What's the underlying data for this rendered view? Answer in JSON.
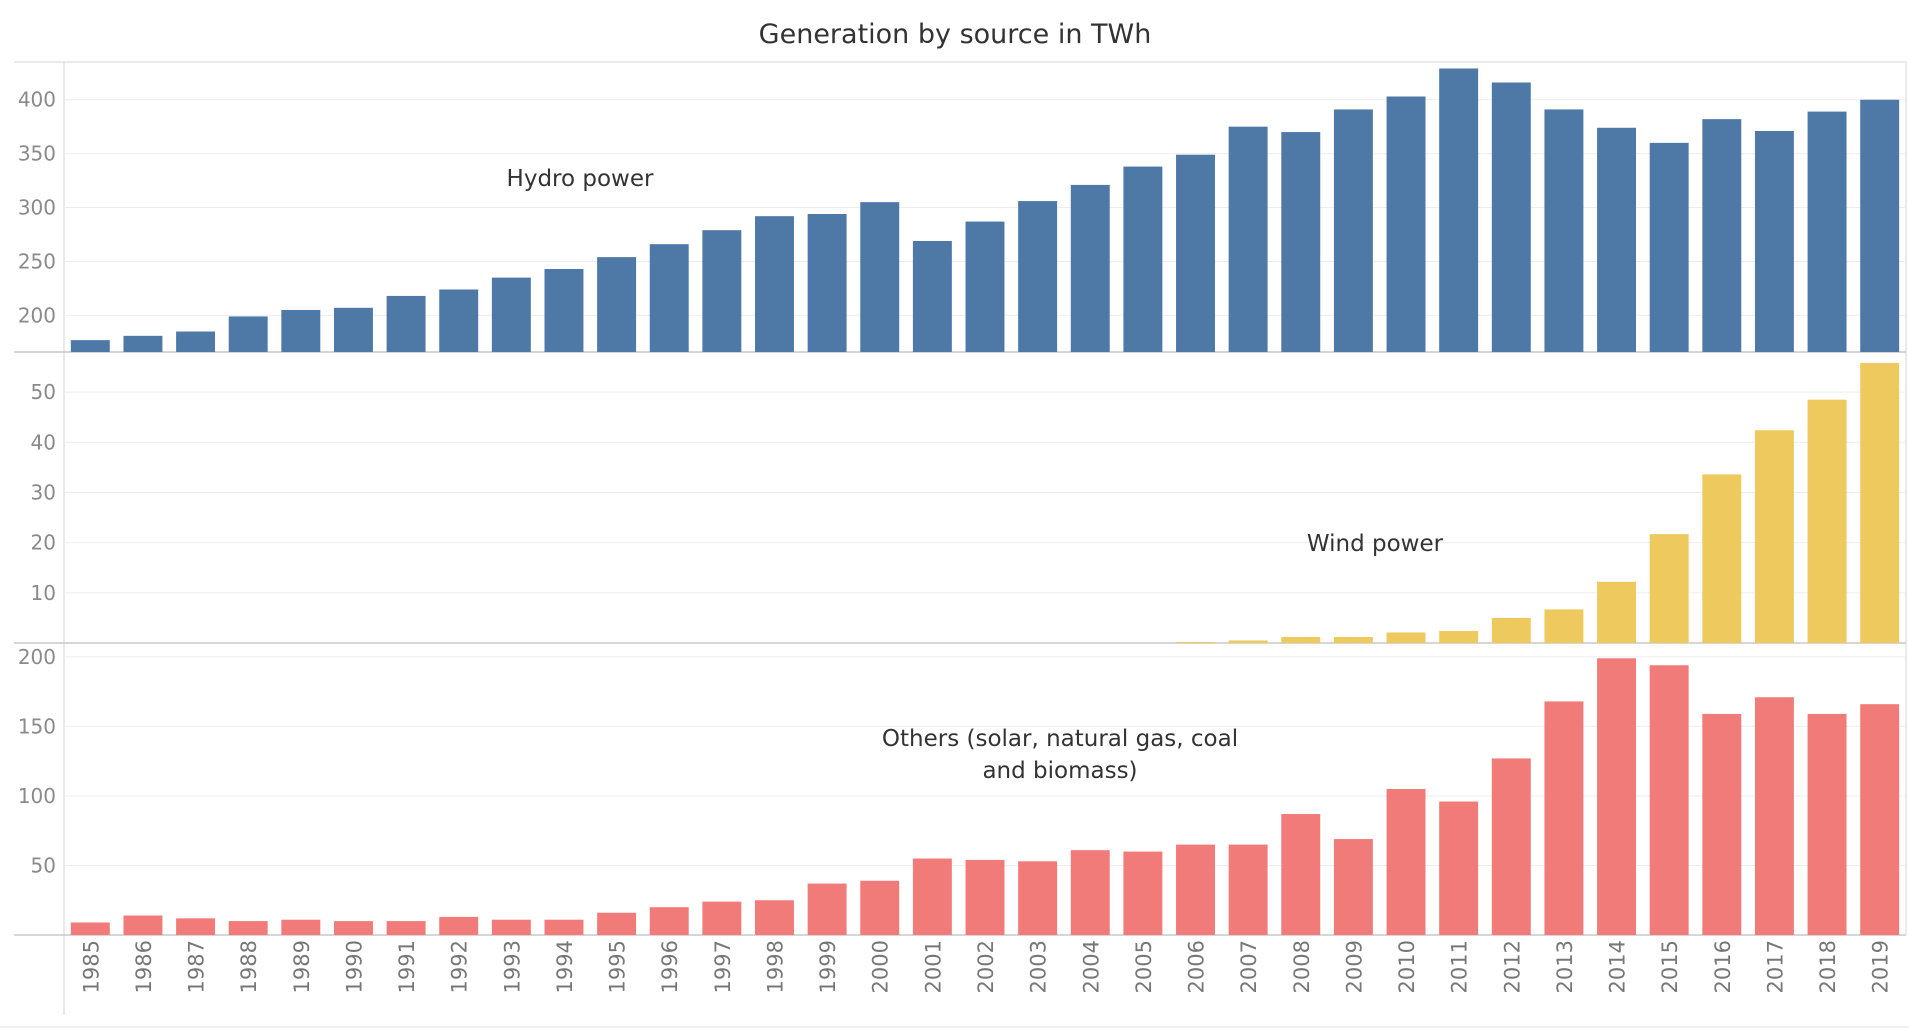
{
  "chart_data": {
    "type": "bar",
    "title": "Generation by source in TWh",
    "categories": [
      "1985",
      "1986",
      "1987",
      "1988",
      "1989",
      "1990",
      "1991",
      "1992",
      "1993",
      "1994",
      "1995",
      "1996",
      "1997",
      "1998",
      "1999",
      "2000",
      "2001",
      "2002",
      "2003",
      "2004",
      "2005",
      "2006",
      "2007",
      "2008",
      "2009",
      "2010",
      "2011",
      "2012",
      "2013",
      "2014",
      "2015",
      "2016",
      "2017",
      "2018",
      "2019"
    ],
    "colors": {
      "hydro": "#4e79a7",
      "wind": "#edc95e",
      "others": "#f07b79"
    },
    "grid": true,
    "panels": [
      {
        "annotation": "Hydro power",
        "ylim": [
          166,
          435
        ],
        "yticks": [
          200,
          250,
          300,
          350,
          400
        ],
        "values": [
          177,
          181,
          185,
          199,
          205,
          207,
          218,
          224,
          235,
          243,
          254,
          266,
          279,
          292,
          294,
          305,
          269,
          287,
          306,
          321,
          338,
          349,
          375,
          370,
          391,
          403,
          429,
          416,
          391,
          374,
          360,
          382,
          371,
          389,
          400
        ]
      },
      {
        "annotation": "Wind power",
        "ylim": [
          0,
          58
        ],
        "yticks": [
          10,
          20,
          30,
          40,
          50
        ],
        "values": [
          0,
          0,
          0,
          0,
          0,
          0,
          0,
          0,
          0,
          0,
          0,
          0,
          0,
          0,
          0,
          0,
          0,
          0,
          0,
          0,
          0,
          0.2,
          0.5,
          1.2,
          1.2,
          2.1,
          2.4,
          5,
          6.7,
          12.2,
          21.7,
          33.6,
          42.4,
          48.5,
          55.8
        ]
      },
      {
        "annotation": "Others (solar, natural gas, coal and biomass)",
        "annotation_lines": [
          "Others (solar, natural gas, coal",
          "and biomass)"
        ],
        "ylim": [
          0,
          210
        ],
        "yticks": [
          50,
          100,
          150,
          200
        ],
        "values": [
          9,
          14,
          12,
          10,
          11,
          10,
          10,
          13,
          11,
          11,
          16,
          20,
          24,
          25,
          37,
          39,
          55,
          54,
          53,
          61,
          60,
          65,
          65,
          87,
          69,
          105,
          96,
          127,
          168,
          199,
          194,
          159,
          171,
          159,
          166
        ]
      }
    ]
  }
}
